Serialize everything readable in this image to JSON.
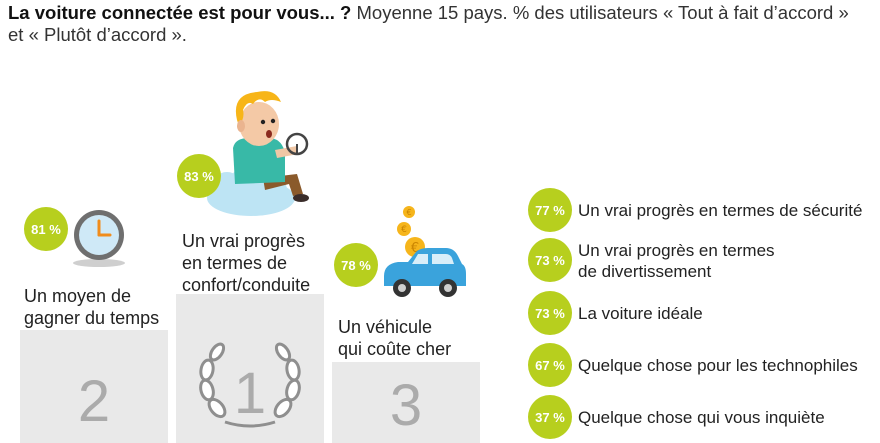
{
  "title": {
    "bold": "La voiture connectée est pour vous... ?",
    "normal": " Moyenne 15 pays. % des utilisateurs « Tout à fait d’accord » et « Plutôt d’accord »."
  },
  "podium": [
    {
      "rank": "1",
      "value": "83 %",
      "label_lines": [
        "Un vrai progrès",
        "en termes de",
        "confort/conduite"
      ]
    },
    {
      "rank": "2",
      "value": "81 %",
      "label_lines": [
        "Un moyen de",
        "gagner du temps"
      ]
    },
    {
      "rank": "3",
      "value": "78 %",
      "label_lines": [
        "Un véhicule",
        "qui coûte cher"
      ]
    }
  ],
  "ranking": [
    {
      "value": "77 %",
      "lines": [
        "Un vrai progrès en termes de sécurité"
      ]
    },
    {
      "value": "73 %",
      "lines": [
        "Un vrai progrès en termes",
        "de divertissement"
      ]
    },
    {
      "value": "73 %",
      "lines": [
        "La voiture idéale"
      ]
    },
    {
      "value": "67 %",
      "lines": [
        "Quelque chose pour les technophiles"
      ]
    },
    {
      "value": "37 %",
      "lines": [
        "Quelque chose qui vous inquiète"
      ]
    }
  ],
  "chart_data": {
    "type": "bar",
    "title": "La voiture connectée est pour vous... ? Moyenne 15 pays. % des utilisateurs « Tout à fait d’accord » et « Plutôt d’accord ».",
    "categories": [
      "Un vrai progrès en termes de confort/conduite",
      "Un moyen de gagner du temps",
      "Un véhicule qui coûte cher",
      "Un vrai progrès en termes de sécurité",
      "Un vrai progrès en termes de divertissement",
      "La voiture idéale",
      "Quelque chose pour les technophiles",
      "Quelque chose qui vous inquiète"
    ],
    "values": [
      83,
      81,
      78,
      77,
      73,
      73,
      67,
      37
    ],
    "unit": "%"
  },
  "colors": {
    "badge": "#b7cf1e",
    "podium": "#e9e9e9",
    "rank_number": "#ababab",
    "car": "#3aa3dc",
    "coin": "#f6b51b",
    "cloud": "#bde4f4"
  }
}
